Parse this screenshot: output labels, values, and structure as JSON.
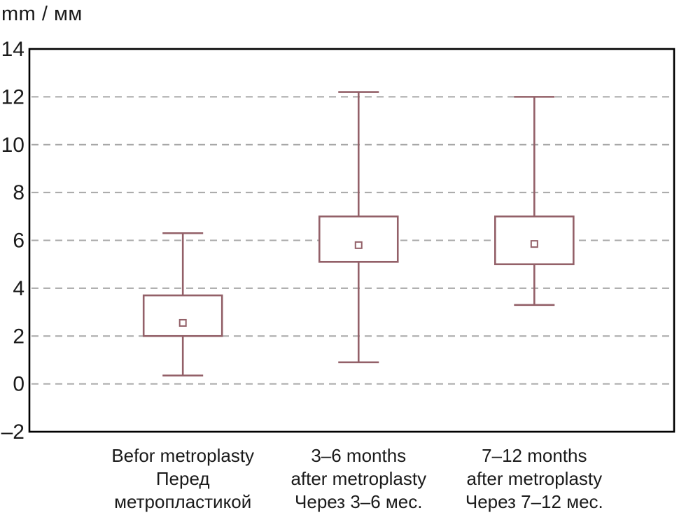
{
  "chart_data": {
    "type": "boxplot",
    "title": "mm / мм",
    "ylabel": "mm / мм",
    "xlabel": "",
    "ylim": [
      -2,
      14
    ],
    "yticks": [
      {
        "v": 14,
        "label": "14"
      },
      {
        "v": 12,
        "label": "12"
      },
      {
        "v": 10,
        "label": "10"
      },
      {
        "v": 8,
        "label": "8"
      },
      {
        "v": 6,
        "label": "6"
      },
      {
        "v": 4,
        "label": "4"
      },
      {
        "v": 2,
        "label": "2"
      },
      {
        "v": 0,
        "label": "0"
      },
      {
        "v": -2,
        "label": "–2"
      }
    ],
    "gridlines": [
      12,
      10,
      8,
      6,
      4,
      2,
      0
    ],
    "grid_style": "dashed horizontal",
    "legend": "none",
    "colors": {
      "box": "#936068",
      "grid": "#a8a8a8",
      "axis": "#000000",
      "text": "#1a1a1a",
      "box_fill": "#ffffff"
    },
    "categories": [
      {
        "lines": [
          "Befor metroplasty",
          "Перед",
          "метропластикой"
        ]
      },
      {
        "lines": [
          "3–6 months",
          "after metroplasty",
          "Через 3–6 мес."
        ]
      },
      {
        "lines": [
          "7–12 months",
          "after metroplasty",
          "Через 7–12 мес."
        ]
      }
    ],
    "series": [
      {
        "name": "Befor metroplasty / Перед метропластикой",
        "whisker_low": 0.35,
        "box_low": 2.0,
        "mean": 2.55,
        "box_high": 3.7,
        "whisker_high": 6.3
      },
      {
        "name": "3–6 months after metroplasty / Через 3–6 мес.",
        "whisker_low": 0.9,
        "box_low": 5.1,
        "mean": 5.8,
        "box_high": 7.0,
        "whisker_high": 12.2
      },
      {
        "name": "7–12 months after metroplasty / Через 7–12 мес.",
        "whisker_low": 3.3,
        "box_low": 5.0,
        "mean": 5.85,
        "box_high": 7.0,
        "whisker_high": 12.0
      }
    ]
  }
}
